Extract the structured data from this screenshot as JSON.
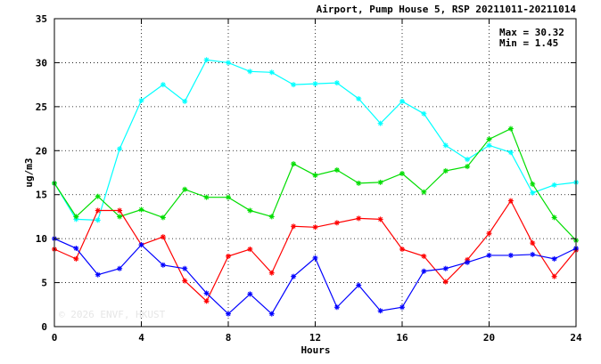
{
  "chart_data": {
    "type": "line",
    "title": "Airport, Pump House 5, RSP 20211011-20211014",
    "xlabel": "Hours",
    "ylabel": "ug/m3",
    "xlim": [
      0,
      24
    ],
    "ylim": [
      0,
      35
    ],
    "xticks": [
      0,
      4,
      8,
      12,
      16,
      20,
      24
    ],
    "yticks": [
      0,
      5,
      10,
      15,
      20,
      25,
      30,
      35
    ],
    "grid": true,
    "stats": {
      "max_label": "Max = 30.32",
      "min_label": "Min =  1.45"
    },
    "watermark": "© 2026  ENVF, HKUST",
    "x": [
      0,
      1,
      2,
      3,
      4,
      5,
      6,
      7,
      8,
      9,
      10,
      11,
      12,
      13,
      14,
      15,
      16,
      17,
      18,
      19,
      20,
      21,
      22,
      23,
      24
    ],
    "series": [
      {
        "color": "#00ffff",
        "values": [
          16.3,
          12.2,
          12.1,
          20.2,
          25.7,
          27.5,
          25.6,
          30.32,
          30.0,
          29.0,
          28.9,
          27.5,
          27.6,
          27.7,
          25.9,
          23.1,
          25.6,
          24.2,
          20.6,
          19.0,
          20.6,
          19.8,
          15.2,
          16.1,
          16.4
        ]
      },
      {
        "color": "#00dd00",
        "values": [
          16.3,
          12.5,
          14.8,
          12.5,
          13.3,
          12.4,
          15.6,
          14.7,
          14.7,
          13.2,
          12.5,
          18.5,
          17.2,
          17.8,
          16.3,
          16.4,
          17.4,
          15.3,
          17.7,
          18.2,
          21.3,
          22.5,
          16.2,
          12.4,
          9.8
        ]
      },
      {
        "color": "#ff0000",
        "values": [
          8.8,
          7.7,
          13.2,
          13.2,
          9.3,
          10.2,
          5.2,
          2.9,
          8.0,
          8.8,
          6.1,
          11.4,
          11.3,
          11.8,
          12.3,
          12.2,
          8.8,
          8.0,
          5.1,
          7.6,
          10.6,
          14.3,
          9.5,
          5.7,
          8.7
        ]
      },
      {
        "color": "#0000ff",
        "values": [
          10.0,
          8.9,
          5.9,
          6.6,
          9.3,
          7.0,
          6.6,
          3.8,
          1.45,
          3.7,
          1.45,
          5.7,
          7.8,
          2.2,
          4.7,
          1.8,
          2.2,
          6.3,
          6.6,
          7.3,
          8.1,
          8.1,
          8.2,
          7.7,
          8.9
        ]
      }
    ]
  }
}
